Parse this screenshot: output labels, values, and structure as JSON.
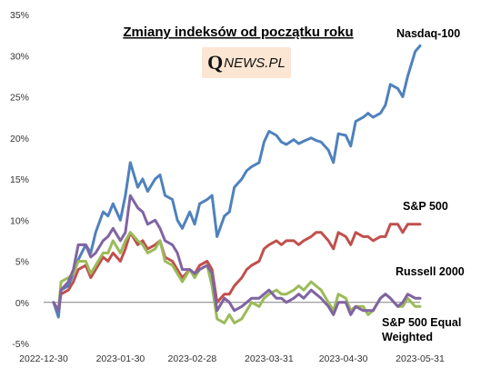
{
  "logo": {
    "q": "Q",
    "news": "NEWS.PL"
  },
  "chart_data": {
    "type": "line",
    "title": "Zmiany indeksów od początku roku",
    "xlabel": "",
    "ylabel": "",
    "ylim": [
      -5,
      35
    ],
    "xlim": [
      "2022-12-30",
      "2023-05-31"
    ],
    "y_ticks": [
      "-5%",
      "0%",
      "5%",
      "10%",
      "15%",
      "20%",
      "25%",
      "30%",
      "35%"
    ],
    "x_ticks": [
      "2022-12-30",
      "2023-01-30",
      "2023-02-28",
      "2023-03-31",
      "2023-04-30",
      "2023-05-31"
    ],
    "grid": false,
    "legend": "labels at line ends",
    "series": [
      {
        "name": "Nasdaq-100",
        "color": "#4f81bd",
        "points": [
          [
            "2023-01-03",
            0.0
          ],
          [
            "2023-01-05",
            -1.8
          ],
          [
            "2023-01-06",
            1.5
          ],
          [
            "2023-01-09",
            2.0
          ],
          [
            "2023-01-11",
            3.5
          ],
          [
            "2023-01-13",
            5.2
          ],
          [
            "2023-01-16",
            7.0
          ],
          [
            "2023-01-18",
            6.0
          ],
          [
            "2023-01-20",
            8.5
          ],
          [
            "2023-01-23",
            11.0
          ],
          [
            "2023-01-25",
            10.5
          ],
          [
            "2023-01-27",
            12.0
          ],
          [
            "2023-01-30",
            10.0
          ],
          [
            "2023-02-01",
            13.0
          ],
          [
            "2023-02-03",
            17.0
          ],
          [
            "2023-02-06",
            14.0
          ],
          [
            "2023-02-08",
            15.0
          ],
          [
            "2023-02-10",
            13.5
          ],
          [
            "2023-02-13",
            15.0
          ],
          [
            "2023-02-15",
            15.5
          ],
          [
            "2023-02-17",
            13.0
          ],
          [
            "2023-02-20",
            12.5
          ],
          [
            "2023-02-22",
            10.0
          ],
          [
            "2023-02-24",
            9.0
          ],
          [
            "2023-02-27",
            11.0
          ],
          [
            "2023-03-01",
            9.5
          ],
          [
            "2023-03-03",
            12.0
          ],
          [
            "2023-03-06",
            12.5
          ],
          [
            "2023-03-08",
            13.0
          ],
          [
            "2023-03-10",
            8.0
          ],
          [
            "2023-03-13",
            10.5
          ],
          [
            "2023-03-15",
            11.0
          ],
          [
            "2023-03-17",
            14.0
          ],
          [
            "2023-03-20",
            15.0
          ],
          [
            "2023-03-22",
            16.0
          ],
          [
            "2023-03-24",
            16.5
          ],
          [
            "2023-03-27",
            17.0
          ],
          [
            "2023-03-29",
            19.5
          ],
          [
            "2023-03-31",
            20.8
          ],
          [
            "2023-04-03",
            20.3
          ],
          [
            "2023-04-05",
            19.5
          ],
          [
            "2023-04-07",
            19.2
          ],
          [
            "2023-04-10",
            19.8
          ],
          [
            "2023-04-12",
            19.3
          ],
          [
            "2023-04-14",
            19.6
          ],
          [
            "2023-04-17",
            20.0
          ],
          [
            "2023-04-19",
            19.7
          ],
          [
            "2023-04-21",
            19.5
          ],
          [
            "2023-04-24",
            18.5
          ],
          [
            "2023-04-26",
            17.0
          ],
          [
            "2023-04-28",
            20.5
          ],
          [
            "2023-05-01",
            20.3
          ],
          [
            "2023-05-03",
            19.0
          ],
          [
            "2023-05-05",
            22.0
          ],
          [
            "2023-05-08",
            22.5
          ],
          [
            "2023-05-10",
            23.0
          ],
          [
            "2023-05-12",
            22.5
          ],
          [
            "2023-05-15",
            23.0
          ],
          [
            "2023-05-17",
            24.0
          ],
          [
            "2023-05-19",
            26.5
          ],
          [
            "2023-05-22",
            26.0
          ],
          [
            "2023-05-24",
            25.0
          ],
          [
            "2023-05-26",
            27.5
          ],
          [
            "2023-05-29",
            30.5
          ],
          [
            "2023-05-31",
            31.2
          ]
        ]
      },
      {
        "name": "S&P 500",
        "color": "#c0504d",
        "points": [
          [
            "2023-01-03",
            0.0
          ],
          [
            "2023-01-05",
            -1.0
          ],
          [
            "2023-01-06",
            1.0
          ],
          [
            "2023-01-09",
            1.5
          ],
          [
            "2023-01-11",
            2.5
          ],
          [
            "2023-01-13",
            4.0
          ],
          [
            "2023-01-16",
            4.5
          ],
          [
            "2023-01-18",
            3.0
          ],
          [
            "2023-01-20",
            4.0
          ],
          [
            "2023-01-23",
            5.5
          ],
          [
            "2023-01-25",
            5.0
          ],
          [
            "2023-01-27",
            6.0
          ],
          [
            "2023-01-30",
            5.0
          ],
          [
            "2023-02-01",
            6.5
          ],
          [
            "2023-02-03",
            8.5
          ],
          [
            "2023-02-06",
            7.0
          ],
          [
            "2023-02-08",
            7.5
          ],
          [
            "2023-02-10",
            6.5
          ],
          [
            "2023-02-13",
            7.0
          ],
          [
            "2023-02-15",
            7.5
          ],
          [
            "2023-02-17",
            5.5
          ],
          [
            "2023-02-20",
            5.0
          ],
          [
            "2023-02-22",
            4.0
          ],
          [
            "2023-02-24",
            3.0
          ],
          [
            "2023-02-27",
            4.0
          ],
          [
            "2023-03-01",
            3.5
          ],
          [
            "2023-03-03",
            4.5
          ],
          [
            "2023-03-06",
            5.0
          ],
          [
            "2023-03-08",
            4.0
          ],
          [
            "2023-03-10",
            0.0
          ],
          [
            "2023-03-13",
            1.0
          ],
          [
            "2023-03-15",
            1.0
          ],
          [
            "2023-03-17",
            2.0
          ],
          [
            "2023-03-20",
            3.0
          ],
          [
            "2023-03-22",
            4.0
          ],
          [
            "2023-03-24",
            4.5
          ],
          [
            "2023-03-27",
            5.0
          ],
          [
            "2023-03-29",
            6.5
          ],
          [
            "2023-03-31",
            7.0
          ],
          [
            "2023-04-03",
            7.5
          ],
          [
            "2023-04-05",
            7.0
          ],
          [
            "2023-04-07",
            7.5
          ],
          [
            "2023-04-10",
            7.5
          ],
          [
            "2023-04-12",
            7.0
          ],
          [
            "2023-04-14",
            7.5
          ],
          [
            "2023-04-17",
            8.0
          ],
          [
            "2023-04-19",
            8.5
          ],
          [
            "2023-04-21",
            8.5
          ],
          [
            "2023-04-24",
            7.5
          ],
          [
            "2023-04-26",
            6.5
          ],
          [
            "2023-04-28",
            8.5
          ],
          [
            "2023-05-01",
            8.0
          ],
          [
            "2023-05-03",
            7.0
          ],
          [
            "2023-05-05",
            8.5
          ],
          [
            "2023-05-08",
            8.0
          ],
          [
            "2023-05-10",
            8.0
          ],
          [
            "2023-05-12",
            7.5
          ],
          [
            "2023-05-15",
            8.0
          ],
          [
            "2023-05-17",
            8.0
          ],
          [
            "2023-05-19",
            9.5
          ],
          [
            "2023-05-22",
            9.5
          ],
          [
            "2023-05-24",
            8.5
          ],
          [
            "2023-05-26",
            9.5
          ],
          [
            "2023-05-29",
            9.5
          ],
          [
            "2023-05-31",
            9.5
          ]
        ]
      },
      {
        "name": "Russell 2000",
        "color": "#9bbb59",
        "points": [
          [
            "2023-01-03",
            0.0
          ],
          [
            "2023-01-05",
            -1.0
          ],
          [
            "2023-01-06",
            2.5
          ],
          [
            "2023-01-09",
            3.0
          ],
          [
            "2023-01-11",
            3.5
          ],
          [
            "2023-01-13",
            5.0
          ],
          [
            "2023-01-16",
            5.0
          ],
          [
            "2023-01-18",
            3.5
          ],
          [
            "2023-01-20",
            4.5
          ],
          [
            "2023-01-23",
            6.0
          ],
          [
            "2023-01-25",
            6.0
          ],
          [
            "2023-01-27",
            7.5
          ],
          [
            "2023-01-30",
            6.0
          ],
          [
            "2023-02-01",
            7.5
          ],
          [
            "2023-02-03",
            8.5
          ],
          [
            "2023-02-06",
            7.5
          ],
          [
            "2023-02-08",
            7.0
          ],
          [
            "2023-02-10",
            6.0
          ],
          [
            "2023-02-13",
            6.5
          ],
          [
            "2023-02-15",
            7.5
          ],
          [
            "2023-02-17",
            5.0
          ],
          [
            "2023-02-20",
            4.5
          ],
          [
            "2023-02-22",
            3.5
          ],
          [
            "2023-02-24",
            2.5
          ],
          [
            "2023-02-27",
            4.0
          ],
          [
            "2023-03-01",
            3.0
          ],
          [
            "2023-03-03",
            4.0
          ],
          [
            "2023-03-06",
            4.5
          ],
          [
            "2023-03-08",
            2.0
          ],
          [
            "2023-03-10",
            -2.0
          ],
          [
            "2023-03-13",
            -2.5
          ],
          [
            "2023-03-15",
            -1.5
          ],
          [
            "2023-03-17",
            -2.5
          ],
          [
            "2023-03-20",
            -2.0
          ],
          [
            "2023-03-22",
            -1.0
          ],
          [
            "2023-03-24",
            0.0
          ],
          [
            "2023-03-27",
            -0.5
          ],
          [
            "2023-03-29",
            0.5
          ],
          [
            "2023-03-31",
            1.0
          ],
          [
            "2023-04-03",
            1.5
          ],
          [
            "2023-04-05",
            1.0
          ],
          [
            "2023-04-07",
            1.0
          ],
          [
            "2023-04-10",
            1.5
          ],
          [
            "2023-04-12",
            2.0
          ],
          [
            "2023-04-14",
            1.5
          ],
          [
            "2023-04-17",
            2.5
          ],
          [
            "2023-04-19",
            2.0
          ],
          [
            "2023-04-21",
            1.5
          ],
          [
            "2023-04-24",
            0.0
          ],
          [
            "2023-04-26",
            -1.0
          ],
          [
            "2023-04-28",
            1.0
          ],
          [
            "2023-05-01",
            0.5
          ],
          [
            "2023-05-03",
            -1.0
          ],
          [
            "2023-05-05",
            -0.5
          ],
          [
            "2023-05-08",
            -0.5
          ],
          [
            "2023-05-10",
            -1.5
          ],
          [
            "2023-05-12",
            -1.0
          ],
          [
            "2023-05-15",
            0.5
          ],
          [
            "2023-05-17",
            1.0
          ],
          [
            "2023-05-19",
            0.5
          ],
          [
            "2023-05-22",
            -0.5
          ],
          [
            "2023-05-24",
            -0.5
          ],
          [
            "2023-05-26",
            0.5
          ],
          [
            "2023-05-29",
            -0.5
          ],
          [
            "2023-05-31",
            -0.5
          ]
        ]
      },
      {
        "name": "S&P 500 Equal Weighted",
        "color": "#8064a2",
        "points": [
          [
            "2023-01-03",
            0.0
          ],
          [
            "2023-01-05",
            -1.0
          ],
          [
            "2023-01-06",
            1.5
          ],
          [
            "2023-01-09",
            2.5
          ],
          [
            "2023-01-11",
            4.0
          ],
          [
            "2023-01-13",
            7.0
          ],
          [
            "2023-01-16",
            7.0
          ],
          [
            "2023-01-18",
            5.5
          ],
          [
            "2023-01-20",
            6.0
          ],
          [
            "2023-01-23",
            7.5
          ],
          [
            "2023-01-25",
            8.0
          ],
          [
            "2023-01-27",
            9.0
          ],
          [
            "2023-01-30",
            7.5
          ],
          [
            "2023-02-01",
            8.5
          ],
          [
            "2023-02-03",
            13.0
          ],
          [
            "2023-02-06",
            11.5
          ],
          [
            "2023-02-08",
            11.0
          ],
          [
            "2023-02-10",
            9.5
          ],
          [
            "2023-02-13",
            10.0
          ],
          [
            "2023-02-15",
            9.0
          ],
          [
            "2023-02-17",
            7.5
          ],
          [
            "2023-02-20",
            7.0
          ],
          [
            "2023-02-22",
            6.0
          ],
          [
            "2023-02-24",
            4.0
          ],
          [
            "2023-02-27",
            4.0
          ],
          [
            "2023-03-01",
            3.5
          ],
          [
            "2023-03-03",
            4.0
          ],
          [
            "2023-03-06",
            4.5
          ],
          [
            "2023-03-08",
            3.5
          ],
          [
            "2023-03-10",
            -1.0
          ],
          [
            "2023-03-13",
            0.5
          ],
          [
            "2023-03-15",
            0.0
          ],
          [
            "2023-03-17",
            -1.0
          ],
          [
            "2023-03-20",
            -0.5
          ],
          [
            "2023-03-22",
            0.0
          ],
          [
            "2023-03-24",
            0.5
          ],
          [
            "2023-03-27",
            0.5
          ],
          [
            "2023-03-29",
            1.0
          ],
          [
            "2023-03-31",
            1.5
          ],
          [
            "2023-04-03",
            0.5
          ],
          [
            "2023-04-05",
            0.5
          ],
          [
            "2023-04-07",
            0.0
          ],
          [
            "2023-04-10",
            0.5
          ],
          [
            "2023-04-12",
            1.0
          ],
          [
            "2023-04-14",
            0.5
          ],
          [
            "2023-04-17",
            1.5
          ],
          [
            "2023-04-19",
            1.0
          ],
          [
            "2023-04-21",
            0.5
          ],
          [
            "2023-04-24",
            -0.5
          ],
          [
            "2023-04-26",
            -1.5
          ],
          [
            "2023-04-28",
            0.0
          ],
          [
            "2023-05-01",
            0.0
          ],
          [
            "2023-05-03",
            -1.5
          ],
          [
            "2023-05-05",
            -0.5
          ],
          [
            "2023-05-08",
            -1.0
          ],
          [
            "2023-05-10",
            -1.0
          ],
          [
            "2023-05-12",
            -1.0
          ],
          [
            "2023-05-15",
            0.5
          ],
          [
            "2023-05-17",
            1.0
          ],
          [
            "2023-05-19",
            0.5
          ],
          [
            "2023-05-22",
            -0.5
          ],
          [
            "2023-05-24",
            0.0
          ],
          [
            "2023-05-26",
            1.0
          ],
          [
            "2023-05-29",
            0.5
          ],
          [
            "2023-05-31",
            0.5
          ]
        ]
      }
    ],
    "series_labels": [
      {
        "series": 0,
        "lines": [
          "Nasdaq-100"
        ]
      },
      {
        "series": 1,
        "lines": [
          "S&P 500"
        ]
      },
      {
        "series": 2,
        "lines": [
          "Russell 2000"
        ]
      },
      {
        "series": 3,
        "lines": [
          "S&P 500  Equal",
          "Weighted"
        ]
      }
    ]
  }
}
